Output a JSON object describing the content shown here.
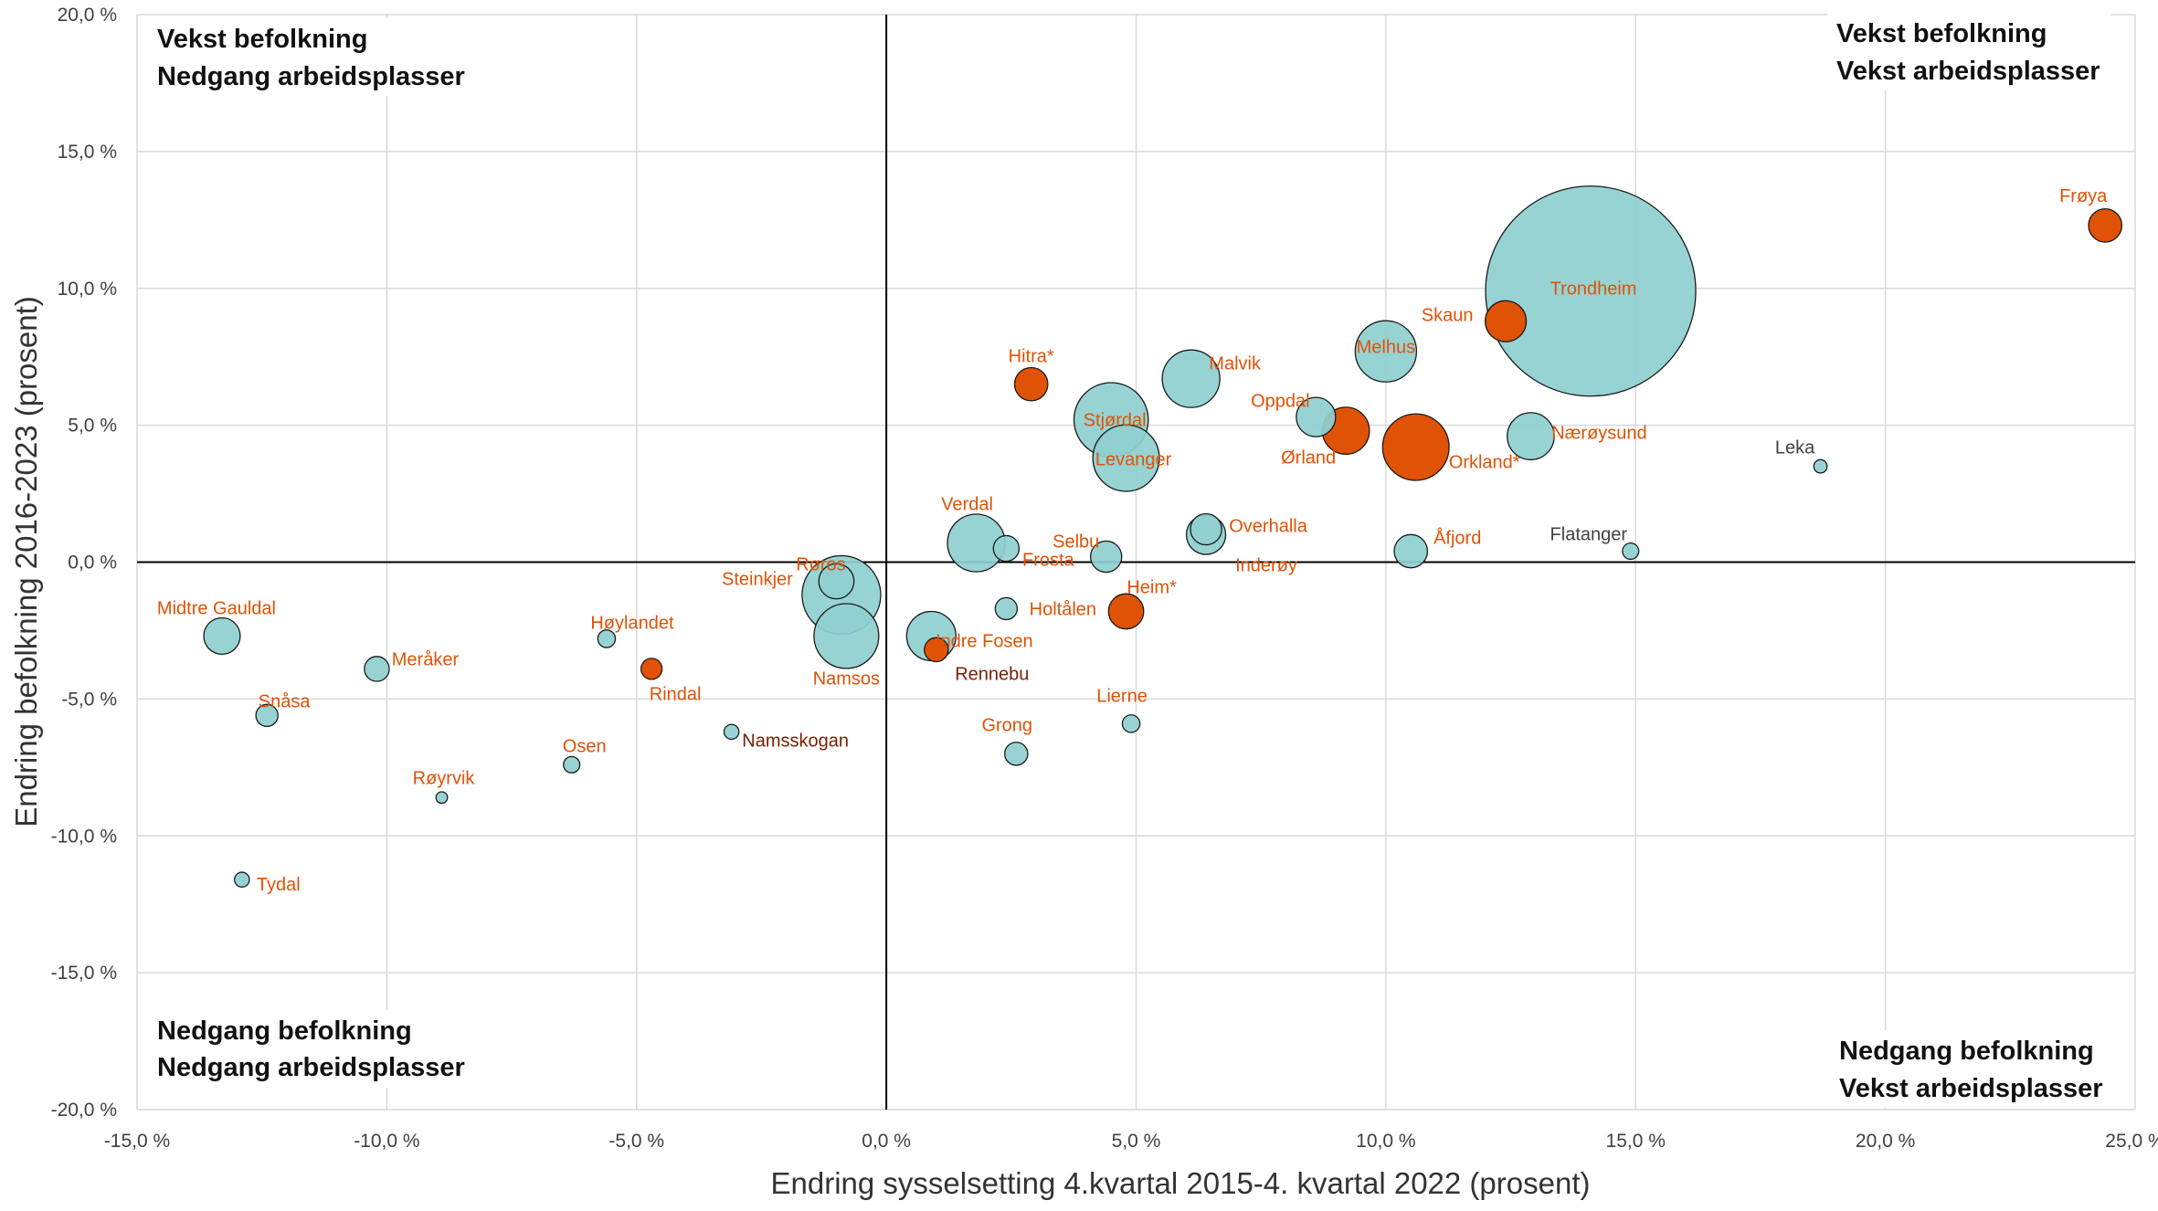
{
  "chart_data": {
    "type": "scatter",
    "xlabel": "Endring sysselsetting 4.kvartal 2015-4. kvartal 2022 (prosent)",
    "ylabel": "Endring befolkning 2016-2023 (prosent)",
    "xlim": [
      -15,
      25
    ],
    "ylim": [
      -20,
      20
    ],
    "x_ticks": [
      -15,
      -10,
      -5,
      0,
      5,
      10,
      15,
      20,
      25
    ],
    "y_ticks": [
      -20,
      -15,
      -10,
      -5,
      0,
      5,
      10,
      15,
      20
    ],
    "x_tick_labels": [
      "-15,0 %",
      "-10,0 %",
      "-5,0 %",
      "0,0 %",
      "5,0 %",
      "10,0 %",
      "15,0 %",
      "20,0 %",
      "25,0 %"
    ],
    "y_tick_labels": [
      "-20,0 %",
      "-15,0 %",
      "-10,0 %",
      "-5,0 %",
      "0,0 %",
      "5,0 %",
      "10,0 %",
      "15,0 %",
      "20,0 %"
    ],
    "grid": "vertical",
    "quadrants": {
      "top_left": [
        "Vekst befolkning",
        "Nedgang arbeidsplasser"
      ],
      "top_right": [
        "Vekst befolkning",
        "Vekst arbeidsplasser"
      ],
      "bottom_left": [
        "Nedgang befolkning",
        "Nedgang arbeidsplasser"
      ],
      "bottom_right": [
        "Nedgang befolkning",
        "Vekst arbeidsplasser"
      ]
    },
    "colors": {
      "teal": "#8fcfcf",
      "orange": "#e05206",
      "label": "#e05206",
      "label_dark": "#7a1e02",
      "label_light": "#404040"
    },
    "points": [
      {
        "name": "Trondheim",
        "x": 14.1,
        "y": 9.9,
        "size": 100,
        "color": "teal",
        "label_style": "big"
      },
      {
        "name": "Frøya",
        "x": 24.4,
        "y": 12.3,
        "size": 2.5,
        "color": "orange"
      },
      {
        "name": "Skaun",
        "x": 12.4,
        "y": 8.8,
        "size": 3.8,
        "color": "orange"
      },
      {
        "name": "Melhus",
        "x": 10.0,
        "y": 7.7,
        "size": 8.5,
        "color": "teal"
      },
      {
        "name": "Malvik",
        "x": 6.1,
        "y": 6.7,
        "size": 7.5,
        "color": "teal"
      },
      {
        "name": "Hitra*",
        "x": 2.9,
        "y": 6.5,
        "size": 2.5,
        "color": "orange"
      },
      {
        "name": "Stjørdal",
        "x": 4.5,
        "y": 5.2,
        "size": 12.5,
        "color": "teal"
      },
      {
        "name": "Levanger",
        "x": 4.8,
        "y": 3.8,
        "size": 10.0,
        "color": "teal"
      },
      {
        "name": "Oppdal",
        "x": 8.6,
        "y": 5.3,
        "size": 3.5,
        "color": "teal"
      },
      {
        "name": "Ørland",
        "x": 9.2,
        "y": 4.8,
        "size": 5.0,
        "color": "orange"
      },
      {
        "name": "Orkland*",
        "x": 10.6,
        "y": 4.2,
        "size": 10.0,
        "color": "orange"
      },
      {
        "name": "Nærøysund",
        "x": 12.9,
        "y": 4.6,
        "size": 5.0,
        "color": "teal"
      },
      {
        "name": "Leka",
        "x": 18.7,
        "y": 3.5,
        "size": 0.4,
        "color": "teal",
        "label_color": "label_light"
      },
      {
        "name": "Verdal",
        "x": 1.8,
        "y": 0.7,
        "size": 7.5,
        "color": "teal"
      },
      {
        "name": "Frosta",
        "x": 2.4,
        "y": 0.5,
        "size": 1.5,
        "color": "teal"
      },
      {
        "name": "Selbu",
        "x": 4.4,
        "y": 0.2,
        "size": 2.2,
        "color": "teal"
      },
      {
        "name": "Overhalla",
        "x": 6.4,
        "y": 1.2,
        "size": 2.2,
        "color": "teal"
      },
      {
        "name": "Inderøy",
        "x": 6.4,
        "y": 1.0,
        "size": 3.5,
        "color": "teal"
      },
      {
        "name": "Åfjord",
        "x": 10.5,
        "y": 0.4,
        "size": 2.5,
        "color": "teal"
      },
      {
        "name": "Flatanger",
        "x": 14.9,
        "y": 0.4,
        "size": 0.6,
        "color": "teal",
        "label_color": "label_light"
      },
      {
        "name": "Røros",
        "x": -1.0,
        "y": -0.7,
        "size": 2.8,
        "color": "teal"
      },
      {
        "name": "Steinkjer",
        "x": -0.9,
        "y": -1.2,
        "size": 14.0,
        "color": "teal"
      },
      {
        "name": "Namsos",
        "x": -0.8,
        "y": -2.7,
        "size": 9.5,
        "color": "teal"
      },
      {
        "name": "Heim*",
        "x": 4.8,
        "y": -1.8,
        "size": 2.8,
        "color": "orange"
      },
      {
        "name": "Holtålen",
        "x": 2.4,
        "y": -1.7,
        "size": 1.1,
        "color": "teal"
      },
      {
        "name": "Indre Fosen",
        "x": 0.9,
        "y": -2.7,
        "size": 5.5,
        "color": "teal"
      },
      {
        "name": "Rennebu",
        "x": 1.0,
        "y": -3.2,
        "size": 1.3,
        "color": "orange",
        "label_color": "label_dark"
      },
      {
        "name": "Midtre Gauldal",
        "x": -13.3,
        "y": -2.7,
        "size": 3.0,
        "color": "teal"
      },
      {
        "name": "Meråker",
        "x": -10.2,
        "y": -3.9,
        "size": 1.4,
        "color": "teal"
      },
      {
        "name": "Høylandet",
        "x": -5.6,
        "y": -2.8,
        "size": 0.7,
        "color": "teal"
      },
      {
        "name": "Rindal",
        "x": -4.7,
        "y": -3.9,
        "size": 1.0,
        "color": "orange"
      },
      {
        "name": "Snåsa",
        "x": -12.4,
        "y": -5.6,
        "size": 1.1,
        "color": "teal"
      },
      {
        "name": "Namsskogan",
        "x": -3.1,
        "y": -6.2,
        "size": 0.5,
        "color": "teal",
        "label_color": "label_dark"
      },
      {
        "name": "Lierne",
        "x": 4.9,
        "y": -5.9,
        "size": 0.7,
        "color": "teal"
      },
      {
        "name": "Grong",
        "x": 2.6,
        "y": -7.0,
        "size": 1.2,
        "color": "teal"
      },
      {
        "name": "Osen",
        "x": -6.3,
        "y": -7.4,
        "size": 0.6,
        "color": "teal"
      },
      {
        "name": "Røyrvik",
        "x": -8.9,
        "y": -8.6,
        "size": 0.3,
        "color": "teal"
      },
      {
        "name": "Tydal",
        "x": -12.9,
        "y": -11.6,
        "size": 0.5,
        "color": "teal"
      }
    ]
  }
}
